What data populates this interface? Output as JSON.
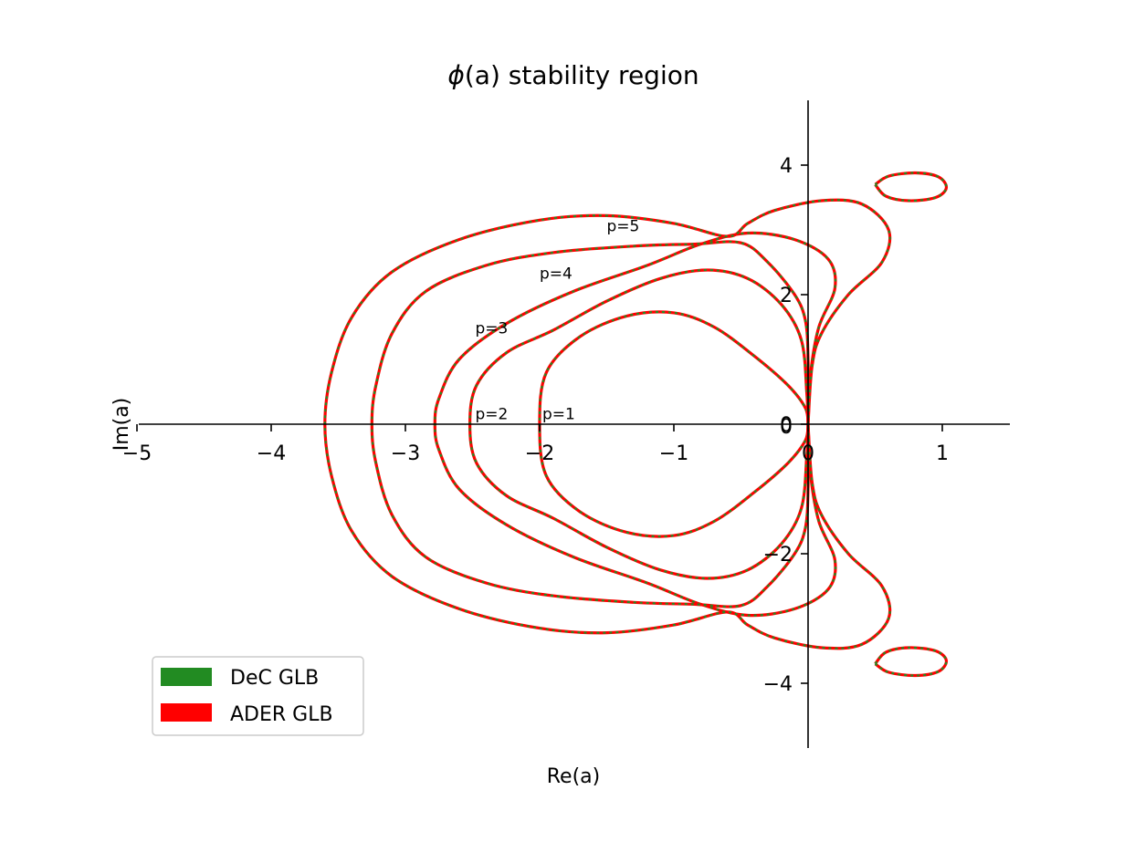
{
  "chart_data": {
    "type": "line",
    "title": "ϕ(a) stability region",
    "title_prefix": "ϕ",
    "title_paren": "(a)",
    "title_rest": " stability region",
    "xlabel": "Re(a)",
    "ylabel": "Im(a)",
    "xlim": [
      -5,
      1.5
    ],
    "ylim": [
      -5.2,
      5.2
    ],
    "xticks": [
      -5,
      -4,
      -3,
      -2,
      -1,
      0,
      1
    ],
    "yticks": [
      -4,
      -2,
      0,
      2,
      4
    ],
    "grid": false,
    "legend_position": "lower-left",
    "series": [
      {
        "name": "DeC GLB",
        "color": "#228b22",
        "style": "dashed"
      },
      {
        "name": "ADER GLB",
        "color": "#ff0000",
        "style": "solid"
      }
    ],
    "contour_labels": [
      {
        "text": "p=1",
        "x": -1.98,
        "y": 0.08
      },
      {
        "text": "p=2",
        "x": -2.48,
        "y": 0.08
      },
      {
        "text": "p=3",
        "x": -2.48,
        "y": 1.4
      },
      {
        "text": "p=4",
        "x": -2.0,
        "y": 2.25
      },
      {
        "text": "p=5",
        "x": -1.5,
        "y": 2.98
      }
    ],
    "curves": [
      {
        "label": "p=1",
        "points": [
          [
            0,
            0
          ],
          [
            -0.02,
            0.25
          ],
          [
            -0.15,
            0.6
          ],
          [
            -0.4,
            1.05
          ],
          [
            -0.7,
            1.5
          ],
          [
            -1.0,
            1.72
          ],
          [
            -1.35,
            1.67
          ],
          [
            -1.7,
            1.35
          ],
          [
            -1.95,
            0.8
          ],
          [
            -2.0,
            0.0
          ],
          [
            -1.95,
            -0.8
          ],
          [
            -1.7,
            -1.35
          ],
          [
            -1.35,
            -1.67
          ],
          [
            -1.0,
            -1.72
          ],
          [
            -0.7,
            -1.5
          ],
          [
            -0.4,
            -1.05
          ],
          [
            -0.15,
            -0.6
          ],
          [
            -0.02,
            -0.25
          ],
          [
            0,
            0
          ]
        ]
      },
      {
        "label": "p=2",
        "points": [
          [
            0,
            0
          ],
          [
            -0.01,
            0.5
          ],
          [
            -0.05,
            1.3
          ],
          [
            -0.2,
            1.85
          ],
          [
            -0.45,
            2.25
          ],
          [
            -0.75,
            2.38
          ],
          [
            -1.1,
            2.25
          ],
          [
            -1.5,
            1.9
          ],
          [
            -1.9,
            1.45
          ],
          [
            -2.25,
            1.1
          ],
          [
            -2.47,
            0.6
          ],
          [
            -2.52,
            0.0
          ],
          [
            -2.47,
            -0.6
          ],
          [
            -2.25,
            -1.1
          ],
          [
            -1.9,
            -1.45
          ],
          [
            -1.5,
            -1.9
          ],
          [
            -1.1,
            -2.25
          ],
          [
            -0.75,
            -2.38
          ],
          [
            -0.45,
            -2.25
          ],
          [
            -0.2,
            -1.85
          ],
          [
            -0.05,
            -1.3
          ],
          [
            -0.01,
            -0.5
          ],
          [
            0,
            0
          ]
        ]
      },
      {
        "label": "p=3",
        "points": [
          [
            0,
            0
          ],
          [
            0.02,
            0.8
          ],
          [
            0.08,
            1.5
          ],
          [
            0.2,
            2.1
          ],
          [
            0.15,
            2.55
          ],
          [
            -0.1,
            2.85
          ],
          [
            -0.45,
            2.95
          ],
          [
            -0.8,
            2.78
          ],
          [
            -1.2,
            2.45
          ],
          [
            -1.75,
            2.05
          ],
          [
            -2.25,
            1.55
          ],
          [
            -2.6,
            1.0
          ],
          [
            -2.75,
            0.4
          ],
          [
            -2.78,
            0.0
          ],
          [
            -2.75,
            -0.4
          ],
          [
            -2.6,
            -1.0
          ],
          [
            -2.25,
            -1.55
          ],
          [
            -1.75,
            -2.05
          ],
          [
            -1.2,
            -2.45
          ],
          [
            -0.8,
            -2.78
          ],
          [
            -0.45,
            -2.95
          ],
          [
            -0.1,
            -2.85
          ],
          [
            0.15,
            -2.55
          ],
          [
            0.2,
            -2.1
          ],
          [
            0.08,
            -1.5
          ],
          [
            0.02,
            -0.8
          ],
          [
            0,
            0
          ]
        ]
      },
      {
        "label": "p=4",
        "points": [
          [
            0,
            0
          ],
          [
            0,
            1.0
          ],
          [
            -0.02,
            1.6
          ],
          [
            -0.1,
            2.0
          ],
          [
            -0.3,
            2.5
          ],
          [
            -0.5,
            2.8
          ],
          [
            -0.85,
            2.78
          ],
          [
            -1.3,
            2.75
          ],
          [
            -1.9,
            2.65
          ],
          [
            -2.4,
            2.45
          ],
          [
            -2.85,
            2.05
          ],
          [
            -3.1,
            1.4
          ],
          [
            -3.22,
            0.6
          ],
          [
            -3.25,
            0.0
          ],
          [
            -3.22,
            -0.6
          ],
          [
            -3.1,
            -1.4
          ],
          [
            -2.85,
            -2.05
          ],
          [
            -2.4,
            -2.45
          ],
          [
            -1.9,
            -2.65
          ],
          [
            -1.3,
            -2.75
          ],
          [
            -0.85,
            -2.78
          ],
          [
            -0.5,
            -2.8
          ],
          [
            -0.3,
            -2.5
          ],
          [
            -0.1,
            -2.0
          ],
          [
            -0.02,
            -1.6
          ],
          [
            0,
            -1.0
          ],
          [
            0,
            0
          ]
        ]
      },
      {
        "label": "p=5",
        "points": [
          [
            0,
            0
          ],
          [
            0.03,
            0.9
          ],
          [
            0.1,
            1.4
          ],
          [
            0.3,
            2.0
          ],
          [
            0.55,
            2.5
          ],
          [
            0.6,
            3.0
          ],
          [
            0.4,
            3.4
          ],
          [
            0.1,
            3.45
          ],
          [
            -0.25,
            3.3
          ],
          [
            -0.45,
            3.1
          ],
          [
            -0.6,
            2.9
          ],
          [
            -1.0,
            3.1
          ],
          [
            -1.5,
            3.22
          ],
          [
            -2.0,
            3.15
          ],
          [
            -2.6,
            2.85
          ],
          [
            -3.1,
            2.35
          ],
          [
            -3.4,
            1.65
          ],
          [
            -3.55,
            0.8
          ],
          [
            -3.6,
            0.0
          ],
          [
            -3.55,
            -0.8
          ],
          [
            -3.4,
            -1.65
          ],
          [
            -3.1,
            -2.35
          ],
          [
            -2.6,
            -2.85
          ],
          [
            -2.0,
            -3.15
          ],
          [
            -1.5,
            -3.22
          ],
          [
            -1.0,
            -3.1
          ],
          [
            -0.6,
            -2.9
          ],
          [
            -0.45,
            -3.1
          ],
          [
            -0.25,
            -3.3
          ],
          [
            0.1,
            -3.45
          ],
          [
            0.4,
            -3.4
          ],
          [
            0.6,
            -3.0
          ],
          [
            0.55,
            -2.5
          ],
          [
            0.3,
            -2.0
          ],
          [
            0.1,
            -1.4
          ],
          [
            0.03,
            -0.9
          ],
          [
            0,
            0
          ]
        ]
      },
      {
        "label": "p=5 island upper",
        "points": [
          [
            0.5,
            3.7
          ],
          [
            0.58,
            3.52
          ],
          [
            0.75,
            3.45
          ],
          [
            0.95,
            3.5
          ],
          [
            1.03,
            3.65
          ],
          [
            0.97,
            3.82
          ],
          [
            0.8,
            3.88
          ],
          [
            0.6,
            3.83
          ],
          [
            0.5,
            3.7
          ]
        ]
      },
      {
        "label": "p=5 island lower",
        "points": [
          [
            0.5,
            -3.7
          ],
          [
            0.58,
            -3.52
          ],
          [
            0.75,
            -3.45
          ],
          [
            0.95,
            -3.5
          ],
          [
            1.03,
            -3.65
          ],
          [
            0.97,
            -3.82
          ],
          [
            0.8,
            -3.88
          ],
          [
            0.6,
            -3.83
          ],
          [
            0.5,
            -3.7
          ]
        ]
      }
    ]
  }
}
